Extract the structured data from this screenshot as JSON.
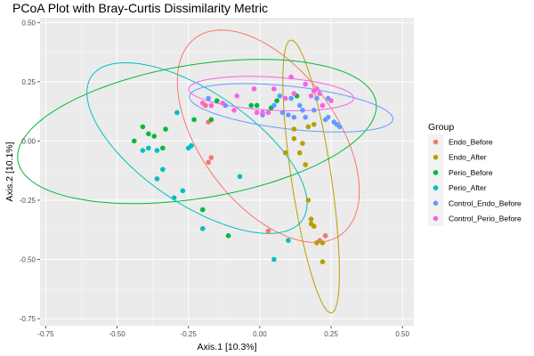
{
  "chart_data": {
    "type": "scatter",
    "title": "PCoA Plot with Bray-Curtis Dissimilarity Metric",
    "xlabel": "Axis.1   [10.3%]",
    "ylabel": "Axis.2   [10.1%]",
    "xlim": [
      -0.77,
      0.54
    ],
    "ylim": [
      -0.78,
      0.52
    ],
    "x_ticks": [
      -0.75,
      -0.5,
      -0.25,
      0.0,
      0.25,
      0.5
    ],
    "x_tick_labels": [
      "-0.75",
      "-0.50",
      "-0.25",
      "0.00",
      "0.25",
      "0.50"
    ],
    "y_ticks": [
      -0.75,
      -0.5,
      -0.25,
      0.0,
      0.25,
      0.5
    ],
    "y_tick_labels": [
      "-0.75",
      "-0.50",
      "-0.25",
      "0.00",
      "0.25",
      "0.50"
    ],
    "grid": true,
    "legend_title": "Group",
    "legend_position": "right",
    "series": [
      {
        "name": "Endo_Before",
        "color": "#F8766D",
        "points": [
          [
            -0.19,
            0.15
          ],
          [
            -0.17,
            0.09
          ],
          [
            -0.18,
            0.08
          ],
          [
            -0.17,
            -0.07
          ],
          [
            -0.18,
            -0.09
          ],
          [
            0.03,
            -0.38
          ],
          [
            0.21,
            -0.42
          ],
          [
            0.23,
            -0.4
          ]
        ],
        "ellipse": {
          "center": [
            0.03,
            0.02
          ],
          "semi_major": 0.49,
          "semi_minor": 0.25,
          "angle_deg": -62
        }
      },
      {
        "name": "Endo_After",
        "color": "#B79F00",
        "points": [
          [
            0.12,
            0.05
          ],
          [
            0.12,
            0.01
          ],
          [
            0.15,
            -0.01
          ],
          [
            0.14,
            -0.05
          ],
          [
            0.16,
            -0.1
          ],
          [
            0.18,
            -0.35
          ],
          [
            0.18,
            -0.33
          ],
          [
            0.19,
            -0.36
          ],
          [
            0.2,
            -0.43
          ],
          [
            0.22,
            -0.43
          ],
          [
            0.22,
            -0.51
          ],
          [
            0.17,
            -0.25
          ],
          [
            0.09,
            -0.05
          ],
          [
            0.17,
            0.06
          ],
          [
            0.19,
            0.07
          ]
        ],
        "ellipse": {
          "center": [
            0.18,
            -0.15
          ],
          "semi_major": 0.58,
          "semi_minor": 0.07,
          "angle_deg": -83
        }
      },
      {
        "name": "Perio_Before",
        "color": "#00BA38",
        "points": [
          [
            -0.44,
            0.0
          ],
          [
            -0.41,
            0.06
          ],
          [
            -0.39,
            0.03
          ],
          [
            -0.37,
            0.02
          ],
          [
            -0.33,
            0.05
          ],
          [
            -0.23,
            0.09
          ],
          [
            -0.17,
            0.09
          ],
          [
            -0.15,
            0.17
          ],
          [
            -0.03,
            0.15
          ],
          [
            -0.01,
            0.15
          ],
          [
            0.04,
            0.14
          ],
          [
            0.13,
            0.19
          ],
          [
            0.06,
            0.17
          ],
          [
            -0.2,
            -0.29
          ],
          [
            -0.11,
            -0.4
          ],
          [
            -0.34,
            -0.03
          ]
        ],
        "ellipse": {
          "center": [
            -0.22,
            0.04
          ],
          "semi_major": 0.64,
          "semi_minor": 0.28,
          "angle_deg": 12
        }
      },
      {
        "name": "Perio_After",
        "color": "#00BFC4",
        "points": [
          [
            -0.41,
            -0.04
          ],
          [
            -0.39,
            -0.03
          ],
          [
            -0.36,
            -0.04
          ],
          [
            -0.34,
            -0.12
          ],
          [
            -0.36,
            -0.16
          ],
          [
            -0.29,
            0.12
          ],
          [
            -0.24,
            -0.02
          ],
          [
            -0.25,
            -0.03
          ],
          [
            -0.27,
            -0.21
          ],
          [
            -0.3,
            -0.24
          ],
          [
            -0.2,
            -0.37
          ],
          [
            -0.07,
            -0.15
          ],
          [
            0.1,
            -0.42
          ],
          [
            0.05,
            -0.5
          ]
        ],
        "ellipse": {
          "center": [
            -0.22,
            -0.03
          ],
          "semi_major": 0.48,
          "semi_minor": 0.22,
          "angle_deg": -42
        }
      },
      {
        "name": "Control_Endo_Before",
        "color": "#619CFF",
        "points": [
          [
            -0.18,
            0.18
          ],
          [
            -0.12,
            0.15
          ],
          [
            0.05,
            0.15
          ],
          [
            0.07,
            0.19
          ],
          [
            0.11,
            0.18
          ],
          [
            0.1,
            0.11
          ],
          [
            0.19,
            0.13
          ],
          [
            0.2,
            0.18
          ],
          [
            0.24,
            0.18
          ],
          [
            0.24,
            0.1
          ],
          [
            0.23,
            0.09
          ],
          [
            0.26,
            0.08
          ],
          [
            0.27,
            0.07
          ],
          [
            0.28,
            0.06
          ],
          [
            0.16,
            0.1
          ],
          [
            0.08,
            0.12
          ],
          [
            0.01,
            0.11
          ],
          [
            0.14,
            0.15
          ],
          [
            0.15,
            0.13
          ],
          [
            0.12,
            0.1
          ]
        ],
        "ellipse": {
          "center": [
            0.11,
            0.14
          ],
          "semi_major": 0.36,
          "semi_minor": 0.09,
          "angle_deg": -8
        }
      },
      {
        "name": "Control_Perio_Before",
        "color": "#F564E3",
        "points": [
          [
            -0.2,
            0.16
          ],
          [
            -0.17,
            0.15
          ],
          [
            -0.08,
            0.19
          ],
          [
            -0.02,
            0.22
          ],
          [
            -0.01,
            0.12
          ],
          [
            0.01,
            0.12
          ],
          [
            0.05,
            0.22
          ],
          [
            0.09,
            0.18
          ],
          [
            0.12,
            0.2
          ],
          [
            0.2,
            0.22
          ],
          [
            0.21,
            0.2
          ],
          [
            0.25,
            0.17
          ],
          [
            0.22,
            0.15
          ],
          [
            0.19,
            0.21
          ],
          [
            0.11,
            0.27
          ],
          [
            0.16,
            0.24
          ],
          [
            0.18,
            0.19
          ],
          [
            -0.13,
            0.16
          ],
          [
            -0.09,
            0.13
          ],
          [
            0.03,
            0.12
          ]
        ],
        "ellipse": {
          "center": [
            0.04,
            0.2
          ],
          "semi_major": 0.29,
          "semi_minor": 0.07,
          "angle_deg": -4
        }
      }
    ]
  }
}
